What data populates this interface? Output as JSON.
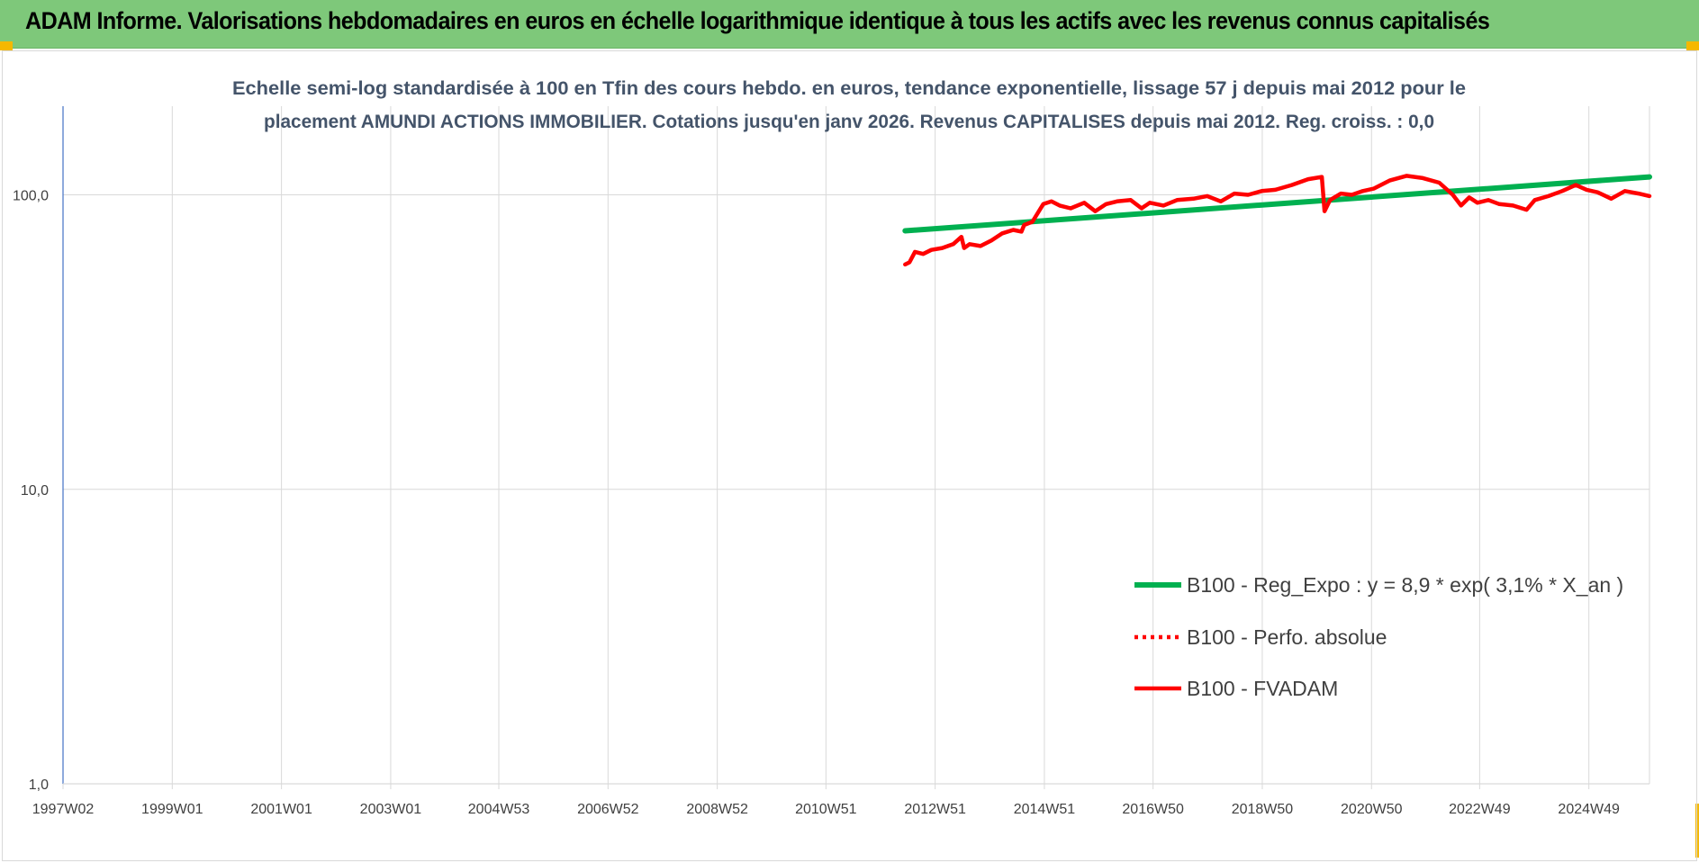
{
  "banner": {
    "title": "ADAM Informe. Valorisations hebdomadaires en euros en échelle logarithmique identique à tous les actifs avec les revenus connus capitalisés"
  },
  "colors": {
    "banner": "#7ec87a",
    "corner": "#f5b800",
    "trend": "#00b050",
    "series": "#ff0000",
    "title": "#44546a",
    "axis": "#4472c4",
    "grid": "#d9d9d9"
  },
  "chart_data": {
    "type": "line",
    "title_lines": [
      "Echelle semi-log standardisée à 100 en Tfin des cours hebdo. en euros, tendance exponentielle, lissage 57 j depuis mai 2012 pour le",
      "placement AMUNDI ACTIONS IMMOBILIER.  Cotations jusqu'en janv 2026.  Revenus CAPITALISES depuis mai 2012.  Reg. croiss. : 0,0"
    ],
    "y_scale": "log",
    "ylim": [
      1,
      200
    ],
    "y_ticks": [
      {
        "value": 1,
        "label": "1,0"
      },
      {
        "value": 10,
        "label": "10,0"
      },
      {
        "value": 100,
        "label": "100,0"
      }
    ],
    "xlim": [
      1997.0,
      2026.05
    ],
    "x_ticks": [
      {
        "value": 1997.0,
        "label": "1997W02"
      },
      {
        "value": 1999.0,
        "label": "1999W01"
      },
      {
        "value": 2001.0,
        "label": "2001W01"
      },
      {
        "value": 2003.0,
        "label": "2003W01"
      },
      {
        "value": 2004.98,
        "label": "2004W53"
      },
      {
        "value": 2006.98,
        "label": "2006W52"
      },
      {
        "value": 2008.98,
        "label": "2008W52"
      },
      {
        "value": 2010.97,
        "label": "2010W51"
      },
      {
        "value": 2012.97,
        "label": "2012W51"
      },
      {
        "value": 2014.97,
        "label": "2014W51"
      },
      {
        "value": 2016.96,
        "label": "2016W50"
      },
      {
        "value": 2018.96,
        "label": "2018W50"
      },
      {
        "value": 2020.96,
        "label": "2020W50"
      },
      {
        "value": 2022.94,
        "label": "2022W49"
      },
      {
        "value": 2024.94,
        "label": "2024W49"
      }
    ],
    "grid": "vertical and horizontal",
    "legend_position": "lower-right",
    "series": [
      {
        "name": "B100 - Reg_Expo : y = 8,9 * exp( 3,1% *  X_an )",
        "color": "#00b050",
        "style": "solid",
        "x": [
          2012.42,
          2026.05
        ],
        "y": [
          75.5,
          115.0
        ]
      },
      {
        "name": "B100 - Perfo. absolue",
        "color": "#ff0000",
        "style": "dotted",
        "x": [],
        "y": []
      },
      {
        "name": "B100 - FVADAM",
        "color": "#ff0000",
        "style": "solid",
        "x": [
          2012.42,
          2012.5,
          2012.6,
          2012.75,
          2012.9,
          2013.1,
          2013.3,
          2013.45,
          2013.5,
          2013.6,
          2013.8,
          2014.0,
          2014.2,
          2014.4,
          2014.55,
          2014.6,
          2014.75,
          2014.95,
          2015.1,
          2015.25,
          2015.45,
          2015.7,
          2015.9,
          2016.1,
          2016.3,
          2016.55,
          2016.75,
          2016.9,
          2017.15,
          2017.4,
          2017.7,
          2017.95,
          2018.2,
          2018.45,
          2018.7,
          2018.95,
          2019.2,
          2019.5,
          2019.8,
          2020.05,
          2020.1,
          2020.2,
          2020.4,
          2020.6,
          2020.8,
          2021.0,
          2021.3,
          2021.6,
          2021.9,
          2022.2,
          2022.45,
          2022.6,
          2022.75,
          2022.9,
          2023.1,
          2023.3,
          2023.55,
          2023.8,
          2023.95,
          2024.2,
          2024.45,
          2024.7,
          2024.9,
          2025.1,
          2025.35,
          2025.6,
          2025.85,
          2026.05
        ],
        "y": [
          58,
          59,
          64,
          63,
          65,
          66,
          68,
          72,
          66,
          68,
          67,
          70,
          74,
          76,
          75,
          79,
          81,
          93,
          95,
          92,
          90,
          94,
          88,
          93,
          95,
          96,
          90,
          94,
          92,
          96,
          97,
          99,
          95,
          101,
          100,
          103,
          104,
          108,
          113,
          115,
          88,
          96,
          101,
          100,
          103,
          105,
          112,
          116,
          114,
          110,
          100,
          92,
          98,
          94,
          96,
          93,
          92,
          89,
          96,
          99,
          103,
          108,
          104,
          102,
          97,
          103,
          101,
          99
        ]
      }
    ]
  }
}
